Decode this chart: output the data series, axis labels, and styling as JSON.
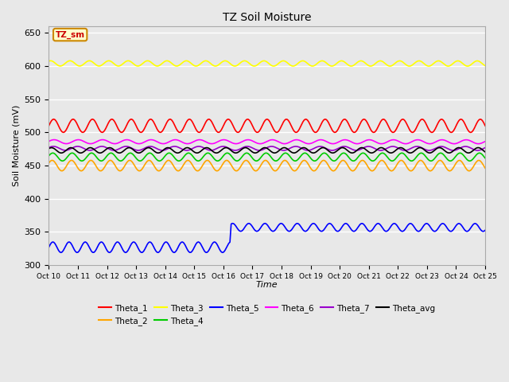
{
  "title": "TZ Soil Moisture",
  "xlabel": "Time",
  "ylabel": "Soil Moisture (mV)",
  "ylim": [
    300,
    660
  ],
  "yticks": [
    300,
    350,
    400,
    450,
    500,
    550,
    600,
    650
  ],
  "n_points": 360,
  "series": {
    "Theta_1": {
      "color": "#ff0000",
      "base": 510,
      "amp": 10,
      "freq": 1.5,
      "phase": 0.0,
      "trend": -0.005
    },
    "Theta_2": {
      "color": "#ffa500",
      "base": 450,
      "amp": 8,
      "freq": 1.5,
      "phase": 0.5,
      "trend": -0.003
    },
    "Theta_3": {
      "color": "#ffff00",
      "base": 604,
      "amp": 4,
      "freq": 1.5,
      "phase": 1.0,
      "trend": -0.012
    },
    "Theta_4": {
      "color": "#00cc00",
      "base": 463,
      "amp": 6,
      "freq": 1.5,
      "phase": 0.3,
      "trend": -0.002
    },
    "Theta_5_pre": {
      "color": "#0000ff",
      "base": 327,
      "amp": 8,
      "freq": 1.8,
      "phase": 0.0,
      "jump_at": 150,
      "jump_base": 357,
      "jump_amp": 6,
      "jump_freq": 1.8,
      "jump_phase": 0.8,
      "jump_trend": -0.02
    },
    "Theta_6": {
      "color": "#ff00ff",
      "base": 486,
      "amp": 3,
      "freq": 1.2,
      "phase": 0.2,
      "trend": -0.008
    },
    "Theta_7": {
      "color": "#9900cc",
      "base": 476,
      "amp": 3,
      "freq": 1.2,
      "phase": 0.4,
      "trend": -0.008
    },
    "Theta_avg": {
      "color": "#000000",
      "base": 473,
      "amp": 4,
      "freq": 1.5,
      "phase": 0.7,
      "trend": 0.005
    }
  },
  "xtick_labels": [
    "Oct 10",
    "Oct 11",
    "Oct 12",
    "Oct 13",
    "Oct 14",
    "Oct 15",
    "Oct 16",
    "Oct 17",
    "Oct 18",
    "Oct 19",
    "Oct 20",
    "Oct 21",
    "Oct 22",
    "Oct 23",
    "Oct 24",
    "Oct 25"
  ],
  "background_color": "#e8e8e8",
  "grid_color": "#ffffff",
  "annotation_text": "TZ_sm",
  "annotation_bg": "#ffffcc",
  "annotation_fg": "#cc0000",
  "annotation_edge": "#cc8800"
}
